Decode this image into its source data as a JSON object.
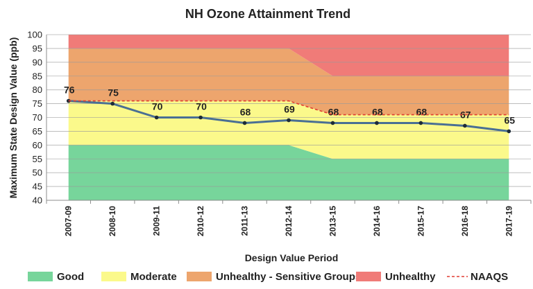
{
  "chart_data": {
    "type": "line",
    "title": "NH Ozone Attainment Trend",
    "xlabel": "Design Value Period",
    "ylabel": "Maximum State Design Value (ppb)",
    "ylim": [
      40,
      100
    ],
    "yticks": [
      40,
      45,
      50,
      55,
      60,
      65,
      70,
      75,
      80,
      85,
      90,
      95,
      100
    ],
    "categories": [
      "2007-09",
      "2008-10",
      "2009-11",
      "2010-12",
      "2011-13",
      "2012-14",
      "2013-15",
      "2014-16",
      "2015-17",
      "2016-18",
      "2017-19"
    ],
    "series": [
      {
        "values": [
          76,
          75,
          70,
          70,
          68,
          69,
          68,
          68,
          68,
          67,
          65
        ],
        "color": "#4a6f94",
        "data_labels": [
          "76",
          "75",
          "70",
          "70",
          "68",
          "69",
          "68",
          "68",
          "68",
          "67",
          "65"
        ]
      },
      {
        "name": "NAAQS",
        "values": [
          76,
          76,
          76,
          76,
          76,
          76,
          71,
          71,
          71,
          71,
          71
        ],
        "color": "#e03c31",
        "style": "dashed"
      }
    ],
    "bands": [
      {
        "name": "Good",
        "color": "#77d59b",
        "upper": [
          60,
          60,
          60,
          60,
          60,
          60,
          55,
          55,
          55,
          55,
          55
        ]
      },
      {
        "name": "Moderate",
        "color": "#fbf98b",
        "upper": [
          76,
          76,
          76,
          76,
          76,
          76,
          71,
          71,
          71,
          71,
          71
        ]
      },
      {
        "name": "Unhealthy - Sensitive Groups",
        "color": "#eda56d",
        "upper": [
          95,
          95,
          95,
          95,
          95,
          95,
          85,
          85,
          85,
          85,
          85
        ]
      },
      {
        "name": "Unhealthy",
        "color": "#f07b78",
        "upper": [
          100,
          100,
          100,
          100,
          100,
          100,
          100,
          100,
          100,
          100,
          100
        ]
      }
    ],
    "grid": true,
    "legend": {
      "position": "bottom",
      "items": [
        {
          "label": "Good",
          "color": "#77d59b",
          "kind": "swatch"
        },
        {
          "label": "Moderate",
          "color": "#fbf98b",
          "kind": "swatch"
        },
        {
          "label": "Unhealthy - Sensitive Groups",
          "color": "#eda56d",
          "kind": "swatch"
        },
        {
          "label": "Unhealthy",
          "color": "#f07b78",
          "kind": "swatch"
        },
        {
          "label": "NAAQS",
          "color": "#e03c31",
          "kind": "dashed-line"
        }
      ]
    }
  }
}
